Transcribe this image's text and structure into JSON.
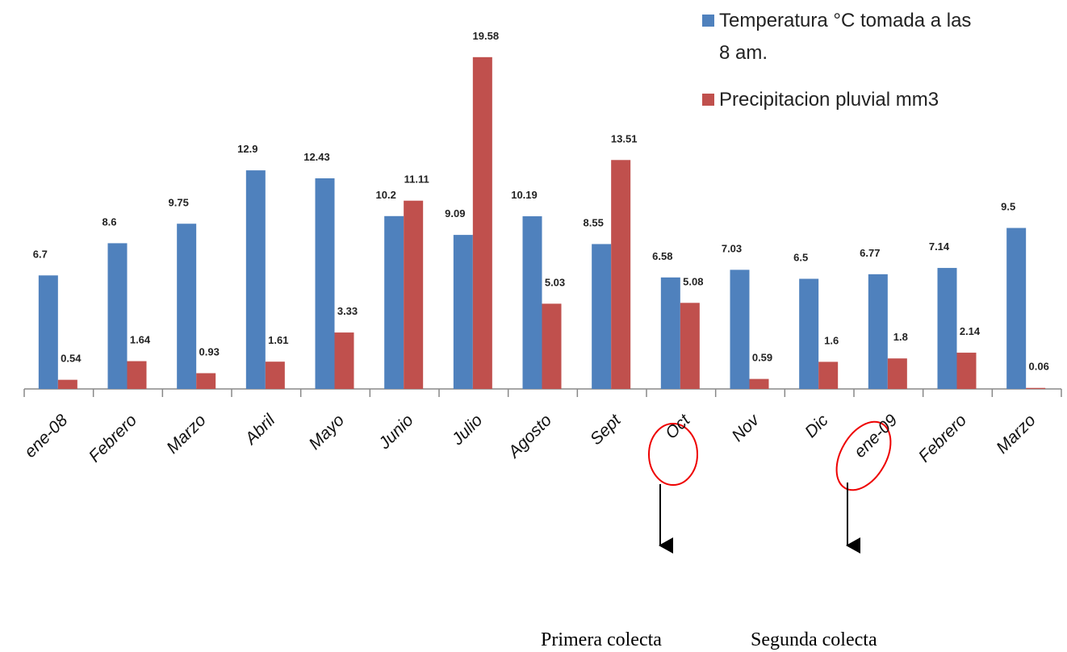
{
  "chart_data": {
    "type": "bar",
    "categories": [
      "ene-08",
      "Febrero",
      "Marzo",
      "Abril",
      "Mayo",
      "Junio",
      "Julio",
      "Agosto",
      "Sept",
      "Oct",
      "Nov",
      "Dic",
      "ene-09",
      "Febrero",
      "Marzo"
    ],
    "series": [
      {
        "name": "Temperatura °C  tomada a las 8 am.",
        "color": "#4f81bd",
        "values": [
          6.7,
          8.6,
          9.75,
          12.9,
          12.43,
          10.2,
          9.09,
          10.19,
          8.55,
          6.58,
          7.03,
          6.5,
          6.77,
          7.14,
          9.5
        ]
      },
      {
        "name": "Precipitacion pluvial mm3",
        "color": "#c0504d",
        "values": [
          0.54,
          1.64,
          0.93,
          1.61,
          3.33,
          11.11,
          19.58,
          5.03,
          13.51,
          5.08,
          0.59,
          1.6,
          1.8,
          2.14,
          0.06
        ]
      }
    ],
    "ylim": [
      0,
      20
    ],
    "annotations": [
      "Primera  colecta",
      "Segunda colecta"
    ]
  }
}
